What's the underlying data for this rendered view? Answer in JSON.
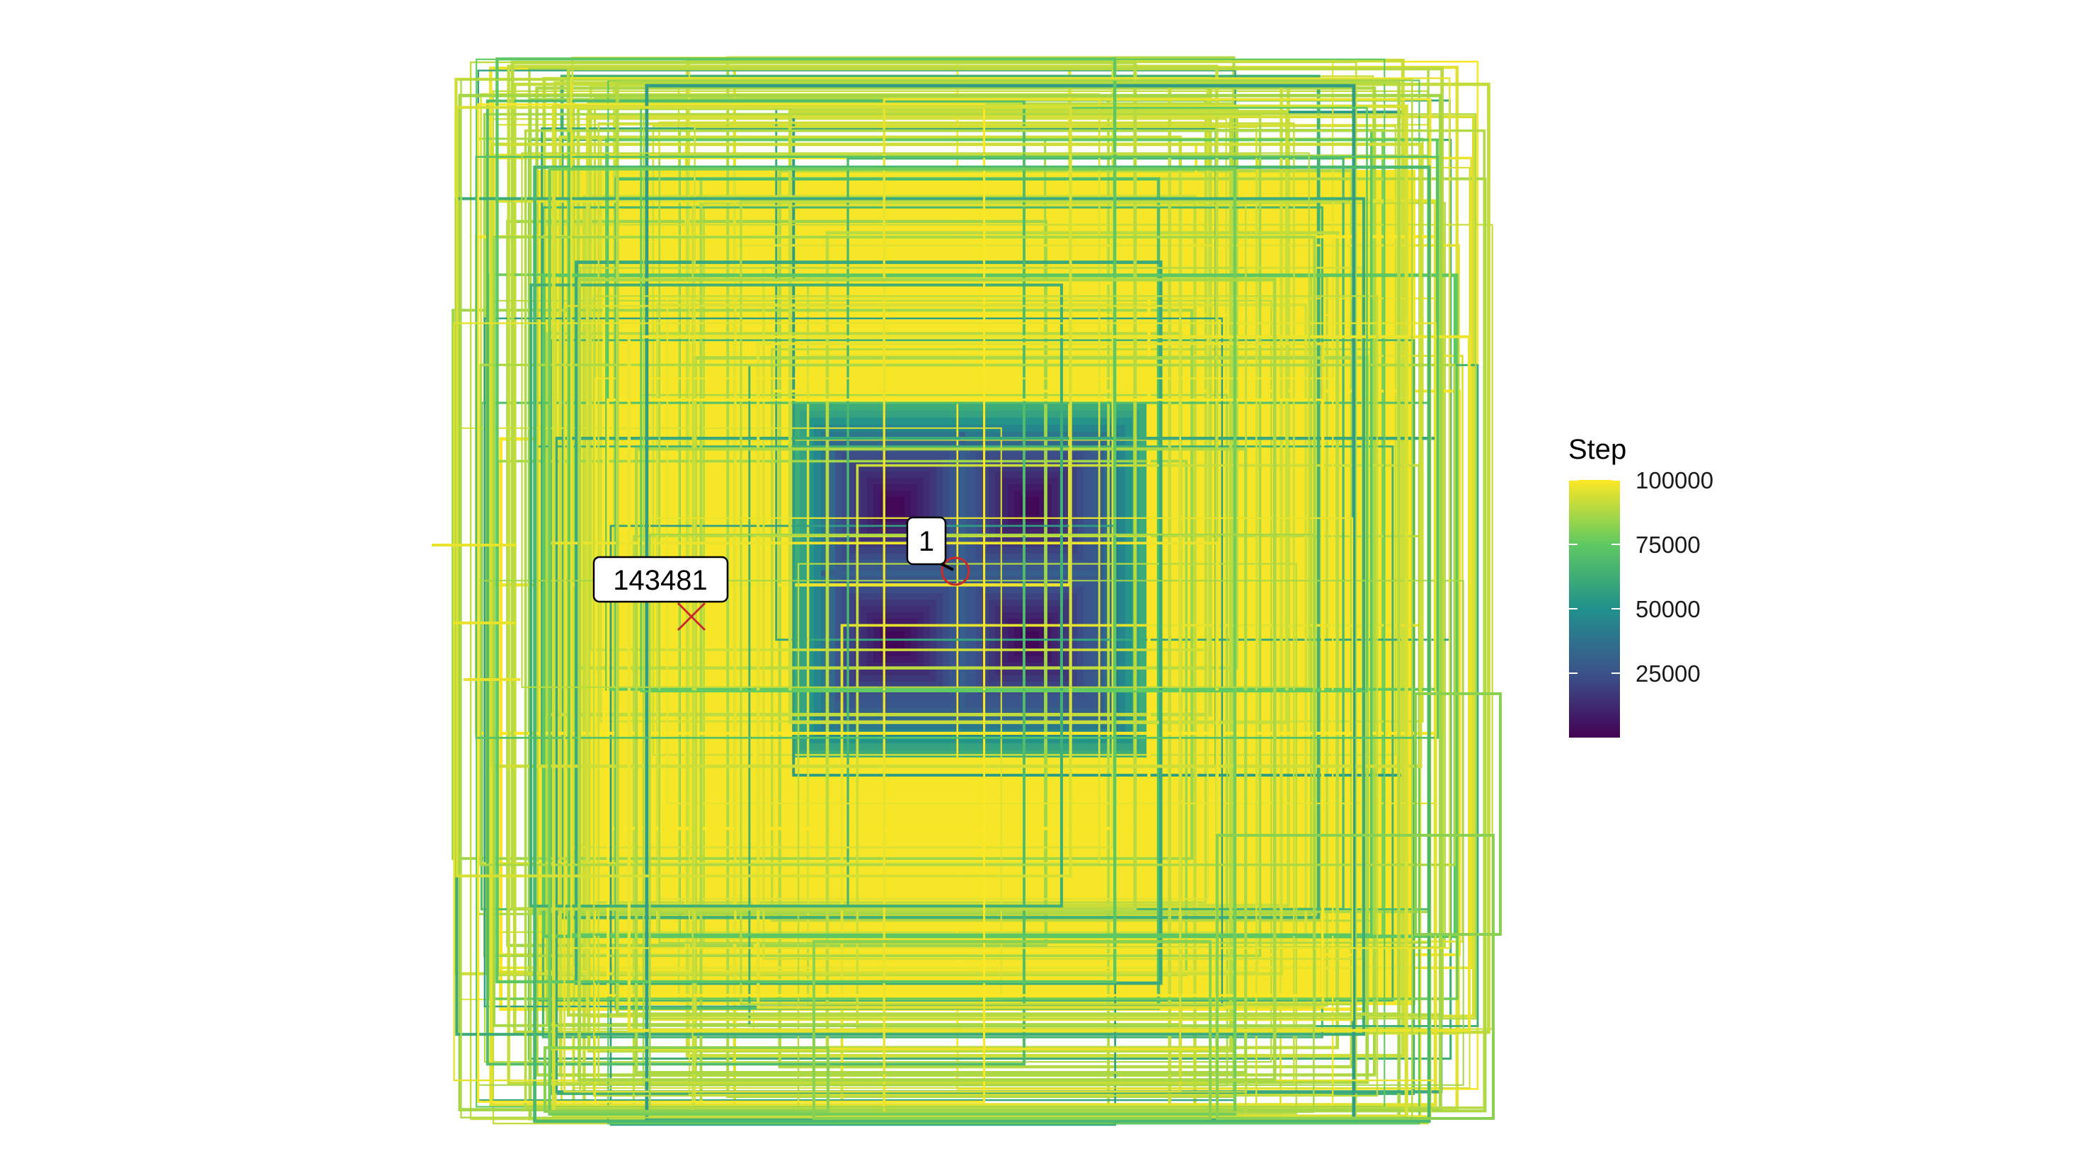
{
  "chart_data": {
    "type": "line",
    "title": "",
    "xlabel": "",
    "ylabel": "",
    "grid": false,
    "axes_visible": false,
    "description_of_marks": "",
    "x_range": [
      -100,
      100
    ],
    "y_range": [
      -100,
      100
    ],
    "color_scale": {
      "name": "viridis",
      "title": "Step",
      "variable": "Step",
      "range": [
        1,
        100000
      ],
      "ticks": [
        25000,
        50000,
        75000,
        100000
      ],
      "tick_labels": [
        "25000",
        "50000",
        "75000",
        "100000"
      ],
      "legend_position": "right",
      "stops": [
        "#440154",
        "#3b528b",
        "#21918c",
        "#5ec962",
        "#fde725"
      ]
    },
    "annotations": [
      {
        "label": "1",
        "step": 1,
        "marker": "circle",
        "x": 5.0,
        "y": -5.0,
        "color": "#cc2a2a"
      },
      {
        "label": "143481",
        "step": 143481,
        "marker": "cross",
        "x": -52.0,
        "y": -12.0,
        "color": "#cc2a2a"
      }
    ]
  }
}
